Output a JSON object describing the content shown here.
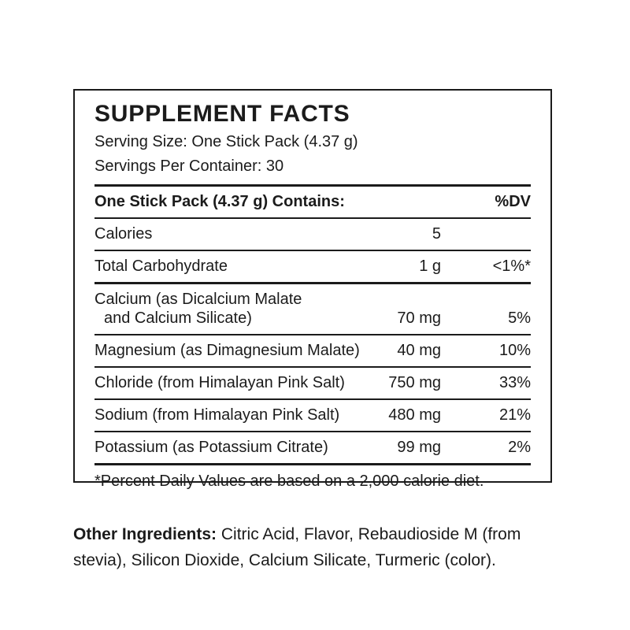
{
  "label": {
    "title": "SUPPLEMENT FACTS",
    "serving_size": "Serving Size: One Stick Pack (4.37 g)",
    "servings_per_container": "Servings Per Container: 30",
    "table": {
      "header": {
        "name": "One Stick Pack (4.37 g) Contains:",
        "dv": "%DV"
      },
      "rows": [
        {
          "name": "Calories",
          "name2": "",
          "amount": "5",
          "dv": ""
        },
        {
          "name": "Total Carbohydrate",
          "name2": "",
          "amount": "1 g",
          "dv": "<1%*"
        },
        {
          "name": "Calcium (as Dicalcium Malate",
          "name2": "and Calcium Silicate)",
          "amount": "70 mg",
          "dv": "5%"
        },
        {
          "name": "Magnesium (as Dimagnesium Malate)",
          "name2": "",
          "amount": "40 mg",
          "dv": "10%"
        },
        {
          "name": "Chloride (from Himalayan Pink Salt)",
          "name2": "",
          "amount": "750 mg",
          "dv": "33%"
        },
        {
          "name": "Sodium (from Himalayan Pink Salt)",
          "name2": "",
          "amount": "480 mg",
          "dv": "21%"
        },
        {
          "name": "Potassium (as Potassium Citrate)",
          "name2": "",
          "amount": "99 mg",
          "dv": "2%"
        }
      ],
      "footnote": "*Percent Daily Values are based on a 2,000 calorie diet."
    },
    "other_ingredients_label": "Other Ingredients:",
    "other_ingredients_text": " Citric Acid, Flavor, Rebaudioside M (from stevia), Silicon Dioxide, Calcium Silicate, Turmeric (color)."
  },
  "colors": {
    "text": "#1b1b1b",
    "background": "#ffffff"
  }
}
